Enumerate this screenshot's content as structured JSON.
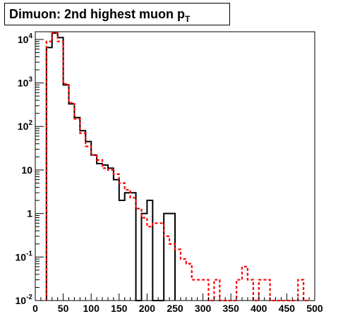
{
  "title": {
    "main": "Dimuon: 2nd highest muon p",
    "subscript": "T"
  },
  "chart_data": {
    "type": "histogram",
    "title": "Dimuon: 2nd highest muon pT",
    "xlabel": "",
    "ylabel": "",
    "xlim": [
      0,
      500
    ],
    "ylim": [
      0.01,
      15000
    ],
    "yscale": "log",
    "x_ticks": [
      0,
      50,
      100,
      150,
      200,
      250,
      300,
      350,
      400,
      450,
      500
    ],
    "y_ticks": [
      {
        "value": 0.01,
        "base": "10",
        "exp": "-2"
      },
      {
        "value": 0.1,
        "base": "10",
        "exp": "-1"
      },
      {
        "value": 1,
        "base": "1",
        "exp": ""
      },
      {
        "value": 10,
        "base": "10",
        "exp": ""
      },
      {
        "value": 100,
        "base": "10",
        "exp": "2"
      },
      {
        "value": 1000,
        "base": "10",
        "exp": "3"
      },
      {
        "value": 10000,
        "base": "10",
        "exp": "4"
      }
    ],
    "bin_width": 10,
    "grid": false,
    "legend": "none",
    "series": [
      {
        "style": "solid",
        "color": "#000000",
        "bin_low_edges": [
          20,
          30,
          40,
          50,
          60,
          70,
          80,
          90,
          100,
          110,
          120,
          130,
          140,
          150,
          160,
          170,
          180,
          190,
          200,
          210,
          220,
          230,
          240
        ],
        "values": [
          6500,
          14000,
          11000,
          900,
          330,
          160,
          80,
          45,
          22,
          14,
          13,
          11,
          6,
          2,
          3,
          3,
          0.01,
          1,
          2,
          0.01,
          0.01,
          1,
          1
        ]
      },
      {
        "style": "dashed",
        "color": "#ff0000",
        "bin_low_edges": [
          20,
          30,
          40,
          50,
          60,
          70,
          80,
          90,
          100,
          110,
          120,
          130,
          140,
          150,
          160,
          170,
          180,
          190,
          200,
          210,
          220,
          230,
          240,
          250,
          260,
          270,
          280,
          290,
          300,
          310,
          320,
          330,
          340,
          350,
          360,
          370,
          380,
          390,
          400,
          410,
          420,
          430,
          440,
          450,
          460,
          470,
          480
        ],
        "values": [
          9000,
          14000,
          9000,
          950,
          350,
          150,
          70,
          35,
          22,
          17,
          11,
          10,
          8,
          5,
          3.5,
          2.3,
          1.3,
          0.8,
          0.5,
          0.6,
          0.6,
          0.3,
          0.2,
          0.15,
          0.09,
          0.07,
          0.03,
          0.03,
          0.03,
          0.01,
          0.03,
          0.01,
          0.01,
          0.01,
          0.03,
          0.06,
          0.03,
          0.01,
          0.03,
          0.03,
          0.01,
          0.01,
          0.01,
          0.01,
          0.01,
          0.03,
          0.01
        ]
      }
    ]
  }
}
